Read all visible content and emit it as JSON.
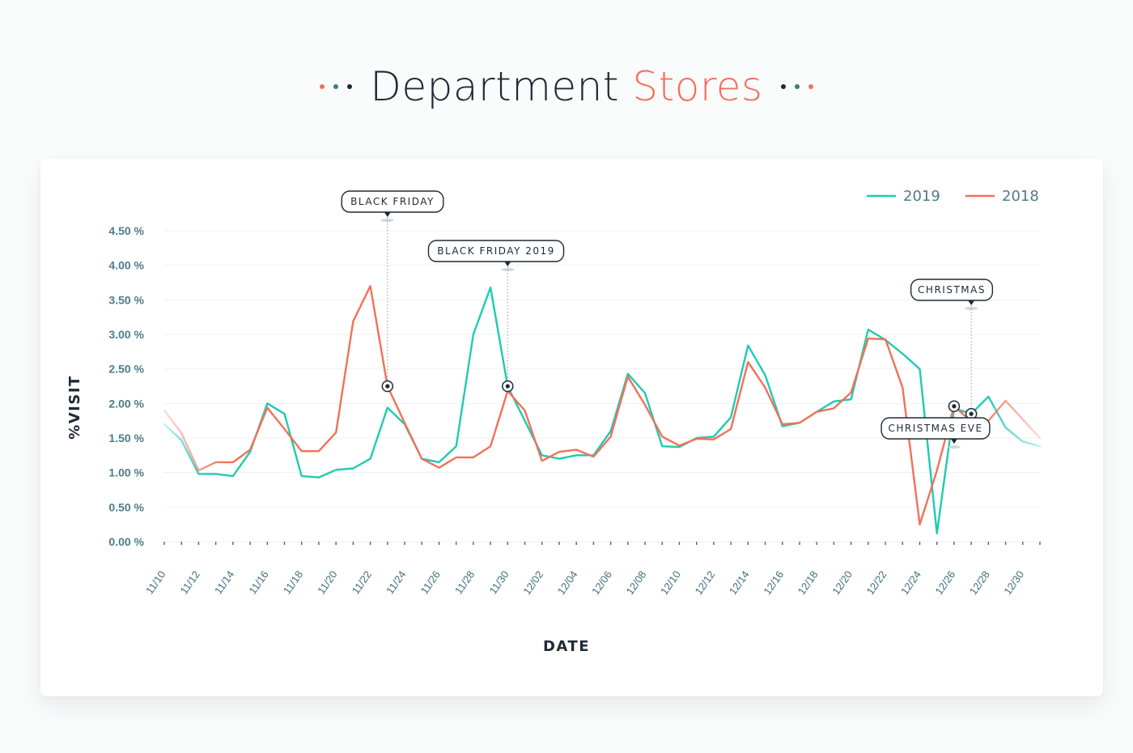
{
  "page": {
    "title_main": "Department",
    "title_accent": "Stores",
    "colors": {
      "dot_left": [
        "#f2715a",
        "#3a7d7b",
        "#1f2a36"
      ],
      "dot_right": [
        "#1f2a36",
        "#3a7d7b",
        "#f2715a"
      ]
    }
  },
  "chart_data": {
    "type": "line",
    "xlabel": "DATE",
    "ylabel": "%VISIT",
    "ylim": [
      0,
      4.5
    ],
    "yticks": [
      "0.00 %",
      "0.50 %",
      "1.00 %",
      "1.50 %",
      "2.00 %",
      "2.50 %",
      "3.00 %",
      "3.50 %",
      "4.00 %",
      "4.50 %"
    ],
    "xticks": [
      "11/10",
      "11/12",
      "11/14",
      "11/16",
      "11/18",
      "11/20",
      "11/22",
      "11/24",
      "11/26",
      "11/28",
      "11/30",
      "12/02",
      "12/04",
      "12/06",
      "12/08",
      "12/10",
      "12/12",
      "12/14",
      "12/16",
      "12/18",
      "12/20",
      "12/22",
      "12/24",
      "12/26",
      "12/28",
      "12/30"
    ],
    "grid": true,
    "legend": "top-right",
    "series": [
      {
        "name": "2019",
        "color": "#1ecbb2",
        "values": [
          1.7,
          1.47,
          0.98,
          0.98,
          0.95,
          1.3,
          2.0,
          1.85,
          0.95,
          0.93,
          1.04,
          1.06,
          1.2,
          1.94,
          1.7,
          1.2,
          1.15,
          1.38,
          3.0,
          3.68,
          2.25,
          1.75,
          1.25,
          1.2,
          1.25,
          1.25,
          1.6,
          2.43,
          2.15,
          1.38,
          1.37,
          1.5,
          1.52,
          1.8,
          2.84,
          2.41,
          1.67,
          1.72,
          1.88,
          2.03,
          2.06,
          3.07,
          2.92,
          2.72,
          2.5,
          0.12,
          1.93,
          1.85,
          2.1,
          1.65,
          1.45,
          1.38
        ]
      },
      {
        "name": "2018",
        "color": "#f2715a",
        "values": [
          1.9,
          1.57,
          1.03,
          1.15,
          1.15,
          1.33,
          1.94,
          1.63,
          1.31,
          1.31,
          1.58,
          3.19,
          3.7,
          2.25,
          1.72,
          1.2,
          1.07,
          1.22,
          1.22,
          1.38,
          2.18,
          1.9,
          1.17,
          1.3,
          1.33,
          1.23,
          1.52,
          2.39,
          1.98,
          1.52,
          1.39,
          1.49,
          1.48,
          1.63,
          2.6,
          2.23,
          1.7,
          1.72,
          1.88,
          1.93,
          2.16,
          2.94,
          2.93,
          2.23,
          0.25,
          1.03,
          1.96,
          1.74,
          1.75,
          2.04,
          1.77,
          1.5
        ]
      }
    ],
    "annotations": [
      {
        "label": "BLACK FRIDAY",
        "series": "2018",
        "index": 13
      },
      {
        "label": "BLACK FRIDAY 2019",
        "series": "2019",
        "index": 20
      },
      {
        "label": "CHRISTMAS",
        "series": "2019",
        "index": 47
      },
      {
        "label": "CHRISTMAS EVE",
        "series": "2018",
        "index": 46
      }
    ]
  }
}
